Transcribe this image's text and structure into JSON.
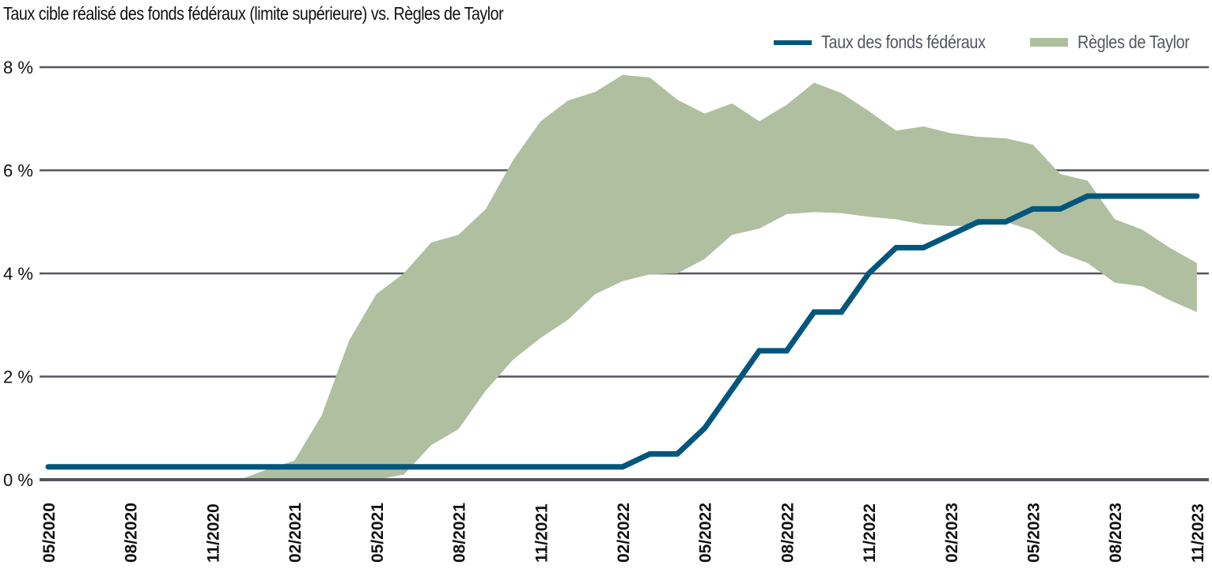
{
  "title": "Taux cible réalisé des fonds fédéraux (limite supérieure) vs. Règles de Taylor",
  "legend": {
    "fed": "Taux des fonds fédéraux",
    "taylor": "Règles de Taylor"
  },
  "colors": {
    "fed_line": "#00567d",
    "taylor_band": "#b0bf9f",
    "gridline": "#54575f",
    "text": "#111111"
  },
  "chart_data": {
    "type": "area",
    "title": "Taux cible réalisé des fonds fédéraux (limite supérieure) vs. Règles de Taylor",
    "xlabel": "",
    "ylabel": "",
    "ylim": [
      0,
      8
    ],
    "yticks": [
      "0 %",
      "2 %",
      "4 %",
      "6 %",
      "8 %"
    ],
    "ytick_values": [
      0,
      2,
      4,
      6,
      8
    ],
    "grid": "horizontal",
    "legend_position": "top-right",
    "xtick_labels": [
      "05/2020",
      "08/2020",
      "11/2020",
      "02/2021",
      "05/2021",
      "08/2021",
      "11/2021",
      "02/2022",
      "05/2022",
      "08/2022",
      "11/2022",
      "02/2023",
      "05/2023",
      "08/2023",
      "11/2023"
    ],
    "x": [
      "05/2020",
      "06/2020",
      "07/2020",
      "08/2020",
      "09/2020",
      "10/2020",
      "11/2020",
      "12/2020",
      "01/2021",
      "02/2021",
      "03/2021",
      "04/2021",
      "05/2021",
      "06/2021",
      "07/2021",
      "08/2021",
      "09/2021",
      "10/2021",
      "11/2021",
      "12/2021",
      "01/2022",
      "02/2022",
      "03/2022",
      "04/2022",
      "05/2022",
      "06/2022",
      "07/2022",
      "08/2022",
      "09/2022",
      "10/2022",
      "11/2022",
      "12/2022",
      "01/2023",
      "02/2023",
      "03/2023",
      "04/2023",
      "05/2023",
      "06/2023",
      "07/2023",
      "08/2023",
      "09/2023",
      "10/2023",
      "11/2023"
    ],
    "series": [
      {
        "name": "Taux des fonds fédéraux",
        "type": "line",
        "values": [
          0.25,
          0.25,
          0.25,
          0.25,
          0.25,
          0.25,
          0.25,
          0.25,
          0.25,
          0.25,
          0.25,
          0.25,
          0.25,
          0.25,
          0.25,
          0.25,
          0.25,
          0.25,
          0.25,
          0.25,
          0.25,
          0.25,
          0.5,
          0.5,
          1.0,
          1.75,
          2.5,
          2.5,
          3.25,
          3.25,
          4.0,
          4.5,
          4.5,
          4.75,
          5.0,
          5.0,
          5.25,
          5.25,
          5.5,
          5.5,
          5.5,
          5.5,
          5.5
        ]
      },
      {
        "name": "Règles de Taylor",
        "type": "band",
        "upper": [
          null,
          null,
          null,
          null,
          null,
          null,
          null,
          0.0,
          0.2,
          0.37,
          1.25,
          2.7,
          3.6,
          4.0,
          4.6,
          4.75,
          5.25,
          6.2,
          6.95,
          7.35,
          7.52,
          7.85,
          7.8,
          7.37,
          7.1,
          7.3,
          6.95,
          7.27,
          7.7,
          7.5,
          7.15,
          6.77,
          6.85,
          6.72,
          6.65,
          6.62,
          6.5,
          5.93,
          5.8,
          5.05,
          4.85,
          4.5,
          4.2
        ],
        "lower": [
          null,
          null,
          null,
          null,
          null,
          null,
          null,
          0.0,
          0.0,
          0.0,
          0.0,
          0.0,
          0.0,
          0.1,
          0.67,
          0.98,
          1.73,
          2.33,
          2.75,
          3.1,
          3.6,
          3.85,
          3.98,
          4.0,
          4.28,
          4.75,
          4.87,
          5.15,
          5.19,
          5.17,
          5.1,
          5.05,
          4.95,
          4.92,
          4.93,
          5.0,
          4.83,
          4.4,
          4.2,
          3.82,
          3.75,
          3.48,
          3.25
        ]
      }
    ]
  }
}
